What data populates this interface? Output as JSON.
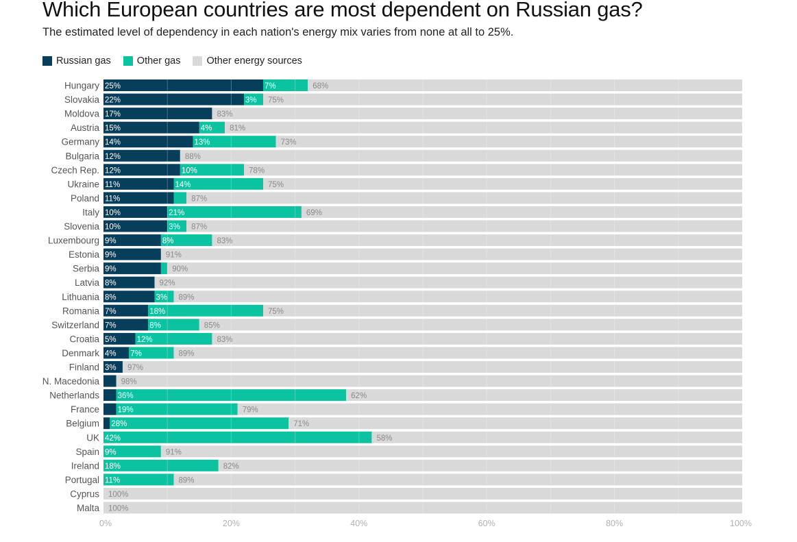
{
  "header": {
    "title": "Which European countries are most dependent on Russian gas?",
    "subtitle": "The estimated level of dependency in each nation's energy mix varies from none at all to 25%."
  },
  "colors": {
    "russian_gas": "#063e5b",
    "other_gas": "#0bc3a0",
    "other_sources": "#d9d9d9",
    "axis_text": "#b0b0b0",
    "row_label": "#555555"
  },
  "chart_data": {
    "type": "bar",
    "orientation": "horizontal",
    "stacked": true,
    "title": "Which European countries are most dependent on Russian gas?",
    "subtitle": "The estimated level of dependency in each nation's energy mix varies from none at all to 25%.",
    "legend_position": "top-left",
    "xlim": [
      0,
      100
    ],
    "x_ticks": [
      "0%",
      "20%",
      "40%",
      "60%",
      "80%",
      "100%"
    ],
    "grid": true,
    "categories": [
      "Hungary",
      "Slovakia",
      "Moldova",
      "Austria",
      "Germany",
      "Bulgaria",
      "Czech Rep.",
      "Ukraine",
      "Poland",
      "Italy",
      "Slovenia",
      "Luxembourg",
      "Estonia",
      "Serbia",
      "Latvia",
      "Lithuania",
      "Romania",
      "Switzerland",
      "Croatia",
      "Denmark",
      "Finland",
      "N. Macedonia",
      "Netherlands",
      "France",
      "Belgium",
      "UK",
      "Spain",
      "Ireland",
      "Portugal",
      "Cyprus",
      "Malta"
    ],
    "series": [
      {
        "name": "Russian gas",
        "values": [
          25,
          22,
          17,
          15,
          14,
          12,
          12,
          11,
          11,
          10,
          10,
          9,
          9,
          9,
          8,
          8,
          7,
          7,
          5,
          4,
          3,
          2,
          2,
          2,
          1,
          0,
          0,
          0,
          0,
          0,
          0
        ],
        "labels": [
          "25%",
          "22%",
          "17%",
          "15%",
          "14%",
          "12%",
          "12%",
          "11%",
          "11%",
          "10%",
          "10%",
          "9%",
          "9%",
          "9%",
          "8%",
          "8%",
          "7%",
          "7%",
          "5%",
          "4%",
          "3%",
          "",
          "",
          "",
          "",
          "",
          "",
          "",
          "",
          "",
          ""
        ]
      },
      {
        "name": "Other gas",
        "values": [
          7,
          3,
          0,
          4,
          13,
          0,
          10,
          14,
          2,
          21,
          3,
          8,
          0,
          1,
          0,
          3,
          18,
          8,
          12,
          7,
          0,
          0,
          36,
          19,
          28,
          42,
          9,
          18,
          11,
          0,
          0
        ],
        "labels": [
          "7%",
          "3%",
          "",
          "4%",
          "13%",
          "",
          "10%",
          "14%",
          "",
          "21%",
          "3%",
          "8%",
          "",
          "",
          "",
          "3%",
          "18%",
          "8%",
          "12%",
          "7%",
          "",
          "",
          "36%",
          "19%",
          "28%",
          "42%",
          "9%",
          "18%",
          "11%",
          "",
          ""
        ]
      },
      {
        "name": "Other energy sources",
        "values": [
          68,
          75,
          83,
          81,
          73,
          88,
          78,
          75,
          87,
          69,
          87,
          83,
          91,
          90,
          92,
          89,
          75,
          85,
          83,
          89,
          97,
          98,
          62,
          79,
          71,
          58,
          91,
          82,
          89,
          100,
          100
        ],
        "labels": [
          "68%",
          "75%",
          "83%",
          "81%",
          "73%",
          "88%",
          "78%",
          "75%",
          "87%",
          "69%",
          "87%",
          "83%",
          "91%",
          "90%",
          "92%",
          "89%",
          "75%",
          "85%",
          "83%",
          "89%",
          "97%",
          "98%",
          "62%",
          "79%",
          "71%",
          "58%",
          "91%",
          "82%",
          "89%",
          "100%",
          "100%"
        ]
      }
    ]
  }
}
